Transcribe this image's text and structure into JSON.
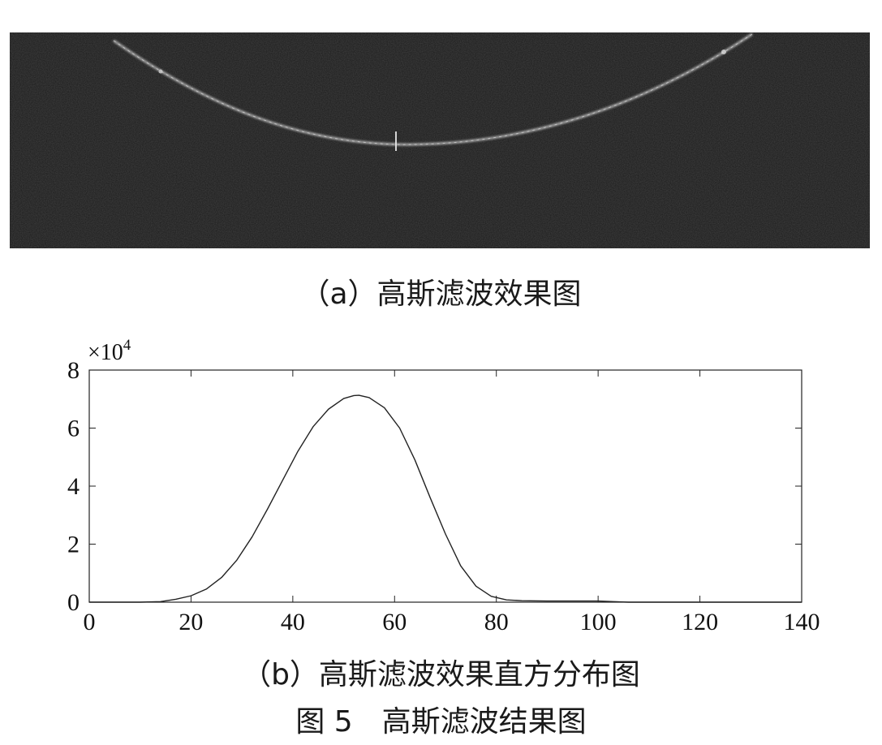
{
  "panel_a": {
    "caption": "（a）高斯滤波效果图",
    "image_icon": "gaussian-filtered-ultrasound-image"
  },
  "panel_b": {
    "caption": "（b）高斯滤波效果直方分布图"
  },
  "figure_caption": "图 5　高斯滤波结果图",
  "chart_data": {
    "type": "line",
    "title": "",
    "xlabel": "",
    "ylabel": "",
    "y_multiplier": "×10",
    "y_multiplier_exp": "4",
    "xlim": [
      0,
      140
    ],
    "ylim": [
      0,
      8
    ],
    "xticks": [
      "0",
      "20",
      "40",
      "60",
      "80",
      "100",
      "120",
      "140"
    ],
    "yticks": [
      "0",
      "2",
      "4",
      "6",
      "8"
    ],
    "grid": false,
    "series": [
      {
        "x": [
          0,
          10,
          14,
          17,
          20,
          23,
          26,
          29,
          32,
          35,
          38,
          41,
          44,
          47,
          50,
          52,
          53,
          55,
          58,
          61,
          64,
          67,
          70,
          73,
          76,
          79,
          82,
          85,
          90,
          95,
          100,
          103,
          106,
          110,
          120,
          130,
          140
        ],
        "y": [
          0,
          0,
          0.02,
          0.1,
          0.22,
          0.45,
          0.85,
          1.45,
          2.25,
          3.2,
          4.2,
          5.2,
          6.05,
          6.65,
          7.02,
          7.12,
          7.13,
          7.05,
          6.7,
          6.0,
          4.9,
          3.6,
          2.35,
          1.25,
          0.55,
          0.2,
          0.08,
          0.05,
          0.04,
          0.04,
          0.04,
          0.02,
          0,
          0,
          0,
          0,
          0
        ]
      }
    ]
  }
}
